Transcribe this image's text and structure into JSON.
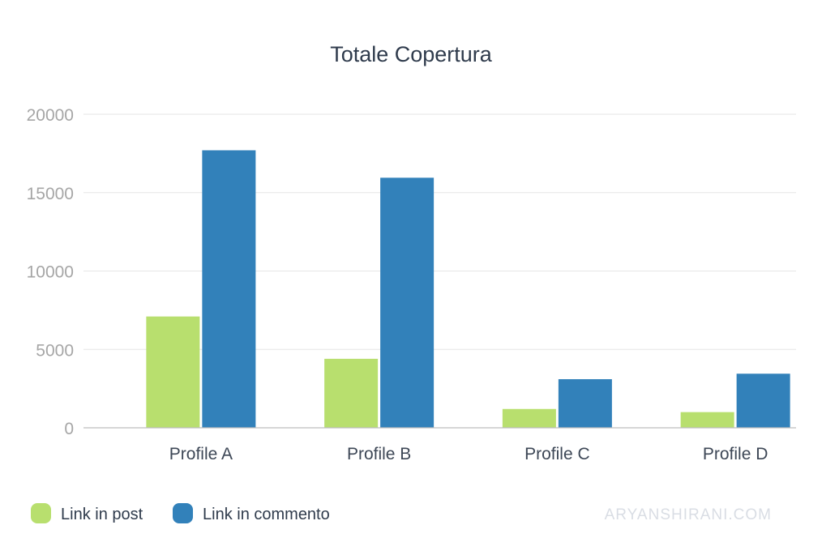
{
  "chart_data": {
    "type": "bar",
    "title": "Totale Copertura",
    "categories": [
      "Profile A",
      "Profile B",
      "Profile C",
      "Profile D"
    ],
    "series": [
      {
        "name": "Link in post",
        "color": "#b8df6e",
        "values": [
          7100,
          4400,
          1200,
          1000
        ]
      },
      {
        "name": "Link in commento",
        "color": "#3281ba",
        "values": [
          17700,
          15950,
          3100,
          3450
        ]
      }
    ],
    "ylim": [
      0,
      20000
    ],
    "yticks": [
      "0",
      "5000",
      "10000",
      "15000",
      "20000"
    ],
    "ytick_values": [
      0,
      5000,
      10000,
      15000,
      20000
    ],
    "grid": true,
    "legend_position": "bottom-left"
  },
  "watermark": "ARYANSHIRANI.COM"
}
